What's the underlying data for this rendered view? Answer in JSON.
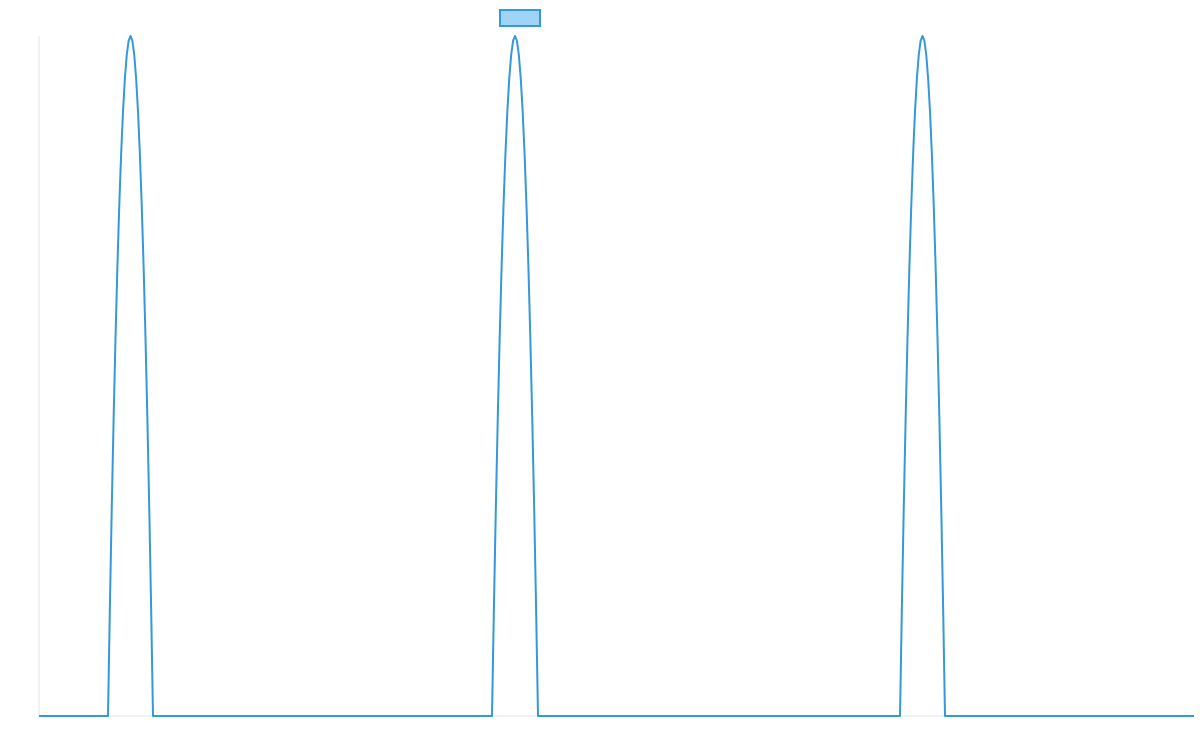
{
  "chart_data": {
    "type": "line",
    "title": "",
    "xlabel": "",
    "ylabel": "",
    "grid": false,
    "legend": {
      "position": "top-center",
      "entries": [
        {
          "name": "",
          "color": "#3498db",
          "fill": "#9fd4f6"
        }
      ]
    },
    "xlim": [
      0,
      1155
    ],
    "ylim": [
      0,
      1
    ],
    "series": [
      {
        "name": "",
        "color": "#3498db",
        "points": [
          [
            0,
            0
          ],
          [
            69,
            0
          ],
          [
            91,
            1
          ],
          [
            114,
            0
          ],
          [
            453,
            0
          ],
          [
            476,
            1
          ],
          [
            499,
            0
          ],
          [
            861,
            0
          ],
          [
            884,
            1
          ],
          [
            906,
            0
          ],
          [
            1155,
            0
          ]
        ]
      }
    ]
  }
}
